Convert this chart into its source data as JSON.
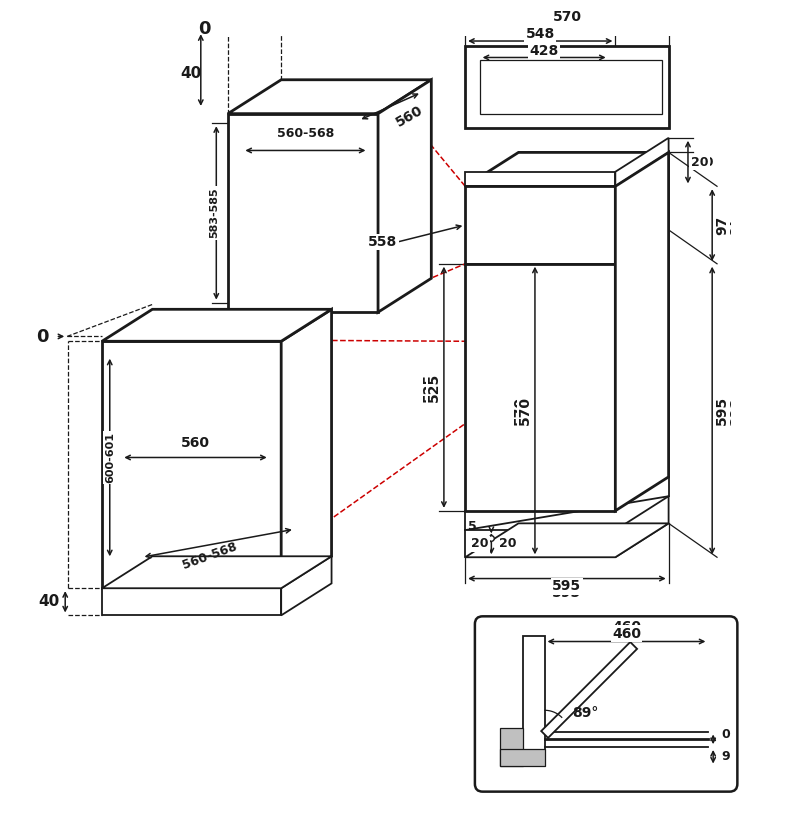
{
  "bg_color": "#ffffff",
  "line_color": "#1a1a1a",
  "gray_fill": "#c0c0c0",
  "red_dash_color": "#cc0000",
  "dims": {
    "top_label_0": "0",
    "left_label_40_top": "40",
    "left_label_0": "0",
    "left_label_40_bot": "40",
    "upper_oven_width": "560-568",
    "upper_oven_depth_label": "583-585",
    "upper_oven_inner_width": "560",
    "lower_oven_inner_width": "560",
    "lower_oven_width_label": "560-568",
    "lower_oven_height_label": "600-601",
    "right_570": "570",
    "right_548": "548",
    "right_558": "558",
    "right_428": "428",
    "right_20_top": "20",
    "right_97": "97",
    "right_525": "525",
    "right_570v": "570",
    "right_595v": "595",
    "right_5": "5",
    "right_20_bot": "20",
    "right_595h": "595",
    "inset_460": "460",
    "inset_89": "89°",
    "inset_0": "0",
    "inset_9": "9"
  }
}
